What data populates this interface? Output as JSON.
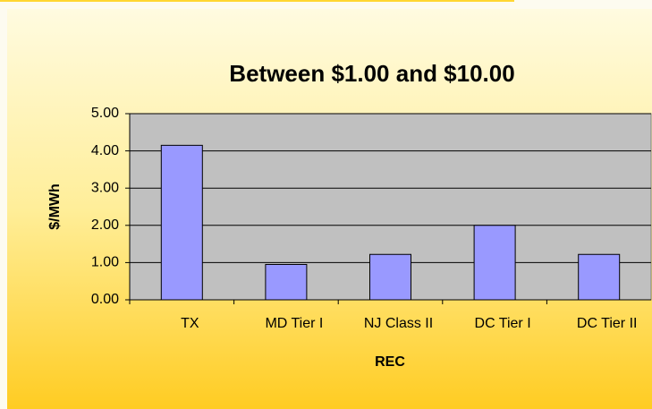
{
  "chart_data": {
    "type": "bar",
    "title": "Between $1.00 and $10.00",
    "x_label": "REC",
    "y_label": "$/MWh",
    "categories": [
      "TX",
      "MD Tier I",
      "NJ Class II",
      "DC Tier I",
      "DC Tier II"
    ],
    "values": [
      4.15,
      0.95,
      1.22,
      2.0,
      1.22
    ],
    "color": "#9999ff",
    "ylim": [
      0,
      5
    ],
    "yticks": [
      {
        "value": 0,
        "label": "0.00"
      },
      {
        "value": 1,
        "label": "1.00"
      },
      {
        "value": 2,
        "label": "2.00"
      },
      {
        "value": 3,
        "label": "3.00"
      },
      {
        "value": 4,
        "label": "4.00"
      },
      {
        "value": 5,
        "label": "5.00"
      }
    ],
    "grid": true
  }
}
